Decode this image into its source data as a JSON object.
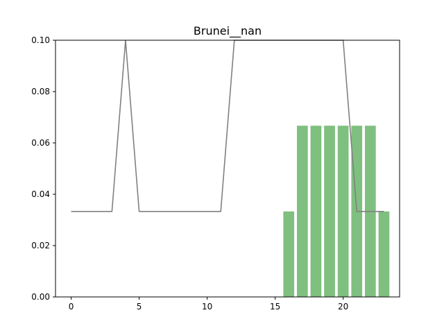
{
  "chart_data": {
    "type": "bar+line",
    "title": "Brunei__nan",
    "xlabel": "",
    "ylabel": "",
    "xlim": [
      -1.15,
      24.15
    ],
    "ylim": [
      0,
      0.1
    ],
    "x_ticks": [
      0,
      5,
      10,
      15,
      20
    ],
    "x_tick_labels": [
      "0",
      "5",
      "10",
      "15",
      "20"
    ],
    "y_ticks": [
      0.0,
      0.02,
      0.04,
      0.06,
      0.08,
      0.1
    ],
    "y_tick_labels": [
      "0.00",
      "0.02",
      "0.04",
      "0.06",
      "0.08",
      "0.10"
    ],
    "grid": false,
    "bars": {
      "color": "#7fbf7f",
      "width": 0.8,
      "x": [
        16,
        17,
        18,
        19,
        20,
        21,
        22,
        23
      ],
      "values": [
        0.0333,
        0.0667,
        0.0667,
        0.0667,
        0.0667,
        0.0667,
        0.0667,
        0.0333
      ]
    },
    "line": {
      "color": "#808080",
      "x": [
        0,
        1,
        2,
        3,
        4,
        5,
        6,
        7,
        8,
        9,
        10,
        11,
        12,
        13,
        14,
        15,
        16,
        17,
        18,
        19,
        20,
        21,
        22,
        23
      ],
      "values": [
        0.0333,
        0.0333,
        0.0333,
        0.0333,
        0.1,
        0.0333,
        0.0333,
        0.0333,
        0.0333,
        0.0333,
        0.0333,
        0.0333,
        0.1,
        0.1,
        0.1,
        0.1,
        0.1,
        0.1,
        0.1,
        0.1,
        0.1,
        0.0333,
        0.0333,
        0.0333
      ]
    }
  }
}
